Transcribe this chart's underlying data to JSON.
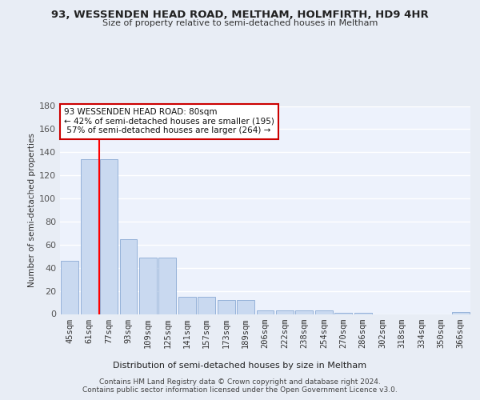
{
  "title": "93, WESSENDEN HEAD ROAD, MELTHAM, HOLMFIRTH, HD9 4HR",
  "subtitle": "Size of property relative to semi-detached houses in Meltham",
  "xlabel": "Distribution of semi-detached houses by size in Meltham",
  "ylabel": "Number of semi-detached properties",
  "bar_labels": [
    "45sqm",
    "61sqm",
    "77sqm",
    "93sqm",
    "109sqm",
    "125sqm",
    "141sqm",
    "157sqm",
    "173sqm",
    "189sqm",
    "206sqm",
    "222sqm",
    "238sqm",
    "254sqm",
    "270sqm",
    "286sqm",
    "302sqm",
    "318sqm",
    "334sqm",
    "350sqm",
    "366sqm"
  ],
  "bar_values": [
    46,
    134,
    134,
    65,
    49,
    49,
    15,
    15,
    12,
    12,
    3,
    3,
    3,
    3,
    1,
    1,
    0,
    0,
    0,
    0,
    2
  ],
  "property_size": "80sqm",
  "smaller_pct": 42,
  "smaller_count": 195,
  "larger_pct": 57,
  "larger_count": 264,
  "bar_color": "#c9d9f0",
  "bar_edge_color": "#8aaad4",
  "redline_x": 1.5,
  "ylim": [
    0,
    180
  ],
  "yticks": [
    0,
    20,
    40,
    60,
    80,
    100,
    120,
    140,
    160,
    180
  ],
  "footnote1": "Contains HM Land Registry data © Crown copyright and database right 2024.",
  "footnote2": "Contains public sector information licensed under the Open Government Licence v3.0.",
  "bg_color": "#e8edf5",
  "plot_bg_color": "#edf2fc"
}
